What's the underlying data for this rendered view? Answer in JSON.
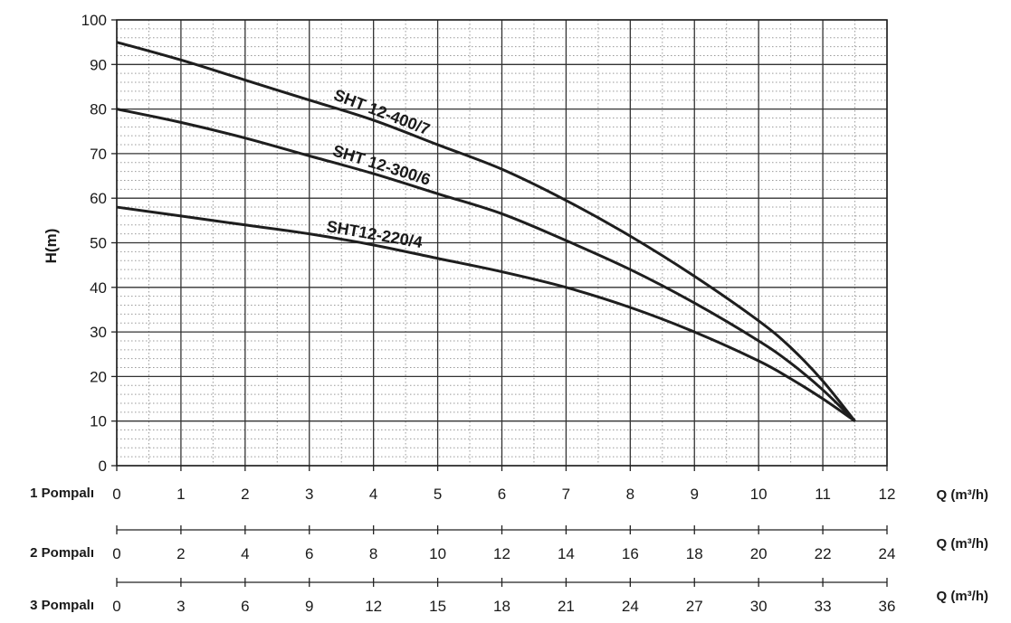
{
  "chart_data": {
    "type": "line",
    "ylabel": "H(m)",
    "ylim": [
      0,
      100
    ],
    "yticks": [
      0,
      10,
      20,
      30,
      40,
      50,
      60,
      70,
      80,
      90,
      100
    ],
    "xlim": [
      0,
      12
    ],
    "grid": true,
    "x_axes": [
      {
        "label": "1 Pompalı",
        "unit": "Q (m³/h)",
        "ticks": [
          "0",
          "1",
          "2",
          "3",
          "4",
          "5",
          "6",
          "7",
          "8",
          "9",
          "10",
          "11",
          "12"
        ]
      },
      {
        "label": "2 Pompalı",
        "unit": "Q (m³/h)",
        "ticks": [
          "0",
          "2",
          "4",
          "6",
          "8",
          "10",
          "12",
          "14",
          "16",
          "18",
          "20",
          "22",
          "24"
        ]
      },
      {
        "label": "3 Pompalı",
        "unit": "Q (m³/h)",
        "ticks": [
          "0",
          "3",
          "6",
          "9",
          "12",
          "15",
          "18",
          "21",
          "24",
          "27",
          "30",
          "33",
          "36"
        ]
      }
    ],
    "series": [
      {
        "name": "SHT 12-400/7",
        "x": [
          0,
          1,
          2,
          3,
          4,
          5,
          6,
          7,
          8,
          9,
          10,
          10.5,
          11,
          11.5
        ],
        "y": [
          95,
          91,
          86.5,
          82,
          77.5,
          72,
          66.5,
          59.5,
          51.5,
          42.5,
          32.5,
          26.5,
          19,
          10
        ]
      },
      {
        "name": "SHT 12-300/6",
        "x": [
          0,
          1,
          2,
          3,
          4,
          5,
          6,
          7,
          8,
          9,
          10,
          10.5,
          11,
          11.5
        ],
        "y": [
          80,
          77,
          73.5,
          69.5,
          65.5,
          61,
          56.5,
          50.5,
          44,
          36.5,
          28,
          23,
          17,
          10
        ]
      },
      {
        "name": "SHT12-220/4",
        "x": [
          0,
          1,
          2,
          3,
          4,
          5,
          6,
          7,
          8,
          9,
          10,
          10.5,
          11,
          11.5
        ],
        "y": [
          58,
          56,
          54,
          52,
          49.5,
          46.5,
          43.5,
          40,
          35.5,
          30,
          23.5,
          19.5,
          15,
          10
        ]
      }
    ]
  }
}
